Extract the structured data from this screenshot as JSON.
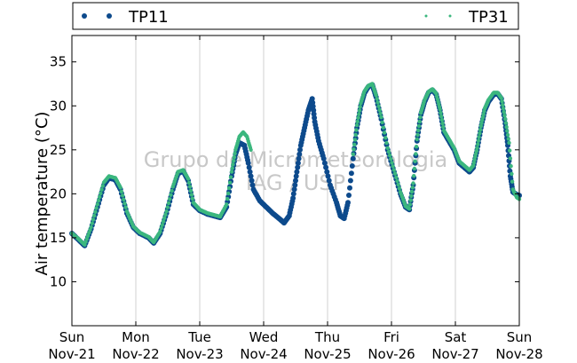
{
  "chart_data": {
    "type": "scatter",
    "ylabel": "Air temperature (°C)",
    "ylim": [
      5,
      38
    ],
    "yticks": [
      10,
      15,
      20,
      25,
      30,
      35
    ],
    "xlim": [
      0,
      7
    ],
    "xticks": [
      {
        "x": 0,
        "day": "Sun",
        "date": "Nov-21"
      },
      {
        "x": 1,
        "day": "Mon",
        "date": "Nov-22"
      },
      {
        "x": 2,
        "day": "Tue",
        "date": "Nov-23"
      },
      {
        "x": 3,
        "day": "Wed",
        "date": "Nov-24"
      },
      {
        "x": 4,
        "day": "Thu",
        "date": "Nov-25"
      },
      {
        "x": 5,
        "day": "Fri",
        "date": "Nov-26"
      },
      {
        "x": 6,
        "day": "Sat",
        "date": "Nov-27"
      },
      {
        "x": 7,
        "day": "Sun",
        "date": "Nov-28"
      }
    ],
    "grid": "vertical",
    "legend": "top",
    "watermark": [
      "Grupo de Micrometeorologia",
      "IAG / USP"
    ],
    "series": [
      {
        "name": "TP11",
        "color": "#0d4a8c",
        "points": [
          [
            0.0,
            15.5
          ],
          [
            0.1,
            14.8
          ],
          [
            0.2,
            14.1
          ],
          [
            0.3,
            16.0
          ],
          [
            0.4,
            18.5
          ],
          [
            0.5,
            21.0
          ],
          [
            0.58,
            21.8
          ],
          [
            0.68,
            21.6
          ],
          [
            0.76,
            20.5
          ],
          [
            0.86,
            17.8
          ],
          [
            0.96,
            16.2
          ],
          [
            1.06,
            15.5
          ],
          [
            1.2,
            15.0
          ],
          [
            1.28,
            14.4
          ],
          [
            1.38,
            15.5
          ],
          [
            1.48,
            17.8
          ],
          [
            1.58,
            20.5
          ],
          [
            1.66,
            22.3
          ],
          [
            1.74,
            22.6
          ],
          [
            1.82,
            21.5
          ],
          [
            1.9,
            18.8
          ],
          [
            2.0,
            18.1
          ],
          [
            2.12,
            17.7
          ],
          [
            2.22,
            17.5
          ],
          [
            2.32,
            17.3
          ],
          [
            2.42,
            18.5
          ],
          [
            2.5,
            22.0
          ],
          [
            2.56,
            24.5
          ],
          [
            2.62,
            25.8
          ],
          [
            2.7,
            25.5
          ],
          [
            2.76,
            23.5
          ],
          [
            2.84,
            20.5
          ],
          [
            2.94,
            19.2
          ],
          [
            3.04,
            18.5
          ],
          [
            3.14,
            17.8
          ],
          [
            3.24,
            17.2
          ],
          [
            3.32,
            16.7
          ],
          [
            3.4,
            17.5
          ],
          [
            3.46,
            19.5
          ],
          [
            3.52,
            22.5
          ],
          [
            3.58,
            25.5
          ],
          [
            3.64,
            27.5
          ],
          [
            3.7,
            29.5
          ],
          [
            3.76,
            30.8
          ],
          [
            3.8,
            28.2
          ],
          [
            3.86,
            26.0
          ],
          [
            3.94,
            24.0
          ],
          [
            4.04,
            21.0
          ],
          [
            4.14,
            19.0
          ],
          [
            4.2,
            17.5
          ],
          [
            4.26,
            17.2
          ],
          [
            4.32,
            19.0
          ],
          [
            4.4,
            24.0
          ],
          [
            4.46,
            27.5
          ],
          [
            4.52,
            30.0
          ],
          [
            4.58,
            31.5
          ],
          [
            4.64,
            32.2
          ],
          [
            4.7,
            32.4
          ],
          [
            4.76,
            31.0
          ],
          [
            4.84,
            28.5
          ],
          [
            4.94,
            25.0
          ],
          [
            5.04,
            22.5
          ],
          [
            5.14,
            20.0
          ],
          [
            5.22,
            18.5
          ],
          [
            5.28,
            18.2
          ],
          [
            5.34,
            21.0
          ],
          [
            5.4,
            26.0
          ],
          [
            5.46,
            29.0
          ],
          [
            5.52,
            30.5
          ],
          [
            5.58,
            31.5
          ],
          [
            5.64,
            31.8
          ],
          [
            5.7,
            31.3
          ],
          [
            5.76,
            29.5
          ],
          [
            5.82,
            27.0
          ],
          [
            5.9,
            26.0
          ],
          [
            5.98,
            25.0
          ],
          [
            6.06,
            23.5
          ],
          [
            6.14,
            23.0
          ],
          [
            6.22,
            22.5
          ],
          [
            6.28,
            23.0
          ],
          [
            6.34,
            25.0
          ],
          [
            6.4,
            27.5
          ],
          [
            6.46,
            29.5
          ],
          [
            6.52,
            30.5
          ],
          [
            6.6,
            31.3
          ],
          [
            6.66,
            31.4
          ],
          [
            6.72,
            30.8
          ],
          [
            6.78,
            28.0
          ],
          [
            6.82,
            25.5
          ],
          [
            6.86,
            22.0
          ],
          [
            6.9,
            20.2
          ],
          [
            6.96,
            19.9
          ],
          [
            7.0,
            19.8
          ]
        ]
      },
      {
        "name": "TP31",
        "color": "#3bb77e",
        "points": [
          [
            0.0,
            15.5
          ],
          [
            0.1,
            14.9
          ],
          [
            0.2,
            14.2
          ],
          [
            0.3,
            16.2
          ],
          [
            0.4,
            18.8
          ],
          [
            0.5,
            21.3
          ],
          [
            0.58,
            22.0
          ],
          [
            0.68,
            21.8
          ],
          [
            0.76,
            20.7
          ],
          [
            0.86,
            18.0
          ],
          [
            0.96,
            16.3
          ],
          [
            1.06,
            15.6
          ],
          [
            1.2,
            15.1
          ],
          [
            1.28,
            14.5
          ],
          [
            1.38,
            15.7
          ],
          [
            1.48,
            18.0
          ],
          [
            1.58,
            20.8
          ],
          [
            1.66,
            22.5
          ],
          [
            1.74,
            22.7
          ],
          [
            1.82,
            21.7
          ],
          [
            1.9,
            19.0
          ],
          [
            2.0,
            18.2
          ],
          [
            2.12,
            17.8
          ],
          [
            2.22,
            17.6
          ],
          [
            2.32,
            17.4
          ],
          [
            2.42,
            18.8
          ],
          [
            2.5,
            22.5
          ],
          [
            2.56,
            25.0
          ],
          [
            2.62,
            26.5
          ],
          [
            2.68,
            27.0
          ],
          [
            2.74,
            26.5
          ],
          [
            2.8,
            25.0
          ],
          [
            4.4,
            24.5
          ],
          [
            4.46,
            27.8
          ],
          [
            4.52,
            30.3
          ],
          [
            4.58,
            31.7
          ],
          [
            4.64,
            32.3
          ],
          [
            4.7,
            32.5
          ],
          [
            4.76,
            31.2
          ],
          [
            4.84,
            28.7
          ],
          [
            4.94,
            25.2
          ],
          [
            5.04,
            22.7
          ],
          [
            5.14,
            20.2
          ],
          [
            5.22,
            18.6
          ],
          [
            5.28,
            18.3
          ],
          [
            5.34,
            21.2
          ],
          [
            5.4,
            26.2
          ],
          [
            5.46,
            29.2
          ],
          [
            5.52,
            30.7
          ],
          [
            5.58,
            31.6
          ],
          [
            5.64,
            31.9
          ],
          [
            5.7,
            31.4
          ],
          [
            5.76,
            29.6
          ],
          [
            5.82,
            27.2
          ],
          [
            5.9,
            26.2
          ],
          [
            5.98,
            25.2
          ],
          [
            6.06,
            23.7
          ],
          [
            6.14,
            23.2
          ],
          [
            6.22,
            22.7
          ],
          [
            6.28,
            23.2
          ],
          [
            6.34,
            25.2
          ],
          [
            6.4,
            27.7
          ],
          [
            6.46,
            29.7
          ],
          [
            6.52,
            30.7
          ],
          [
            6.6,
            31.5
          ],
          [
            6.66,
            31.5
          ],
          [
            6.72,
            30.9
          ],
          [
            6.78,
            28.5
          ],
          [
            6.84,
            25.8
          ],
          [
            6.9,
            20.5
          ],
          [
            6.96,
            19.6
          ],
          [
            7.0,
            19.4
          ]
        ]
      }
    ]
  }
}
